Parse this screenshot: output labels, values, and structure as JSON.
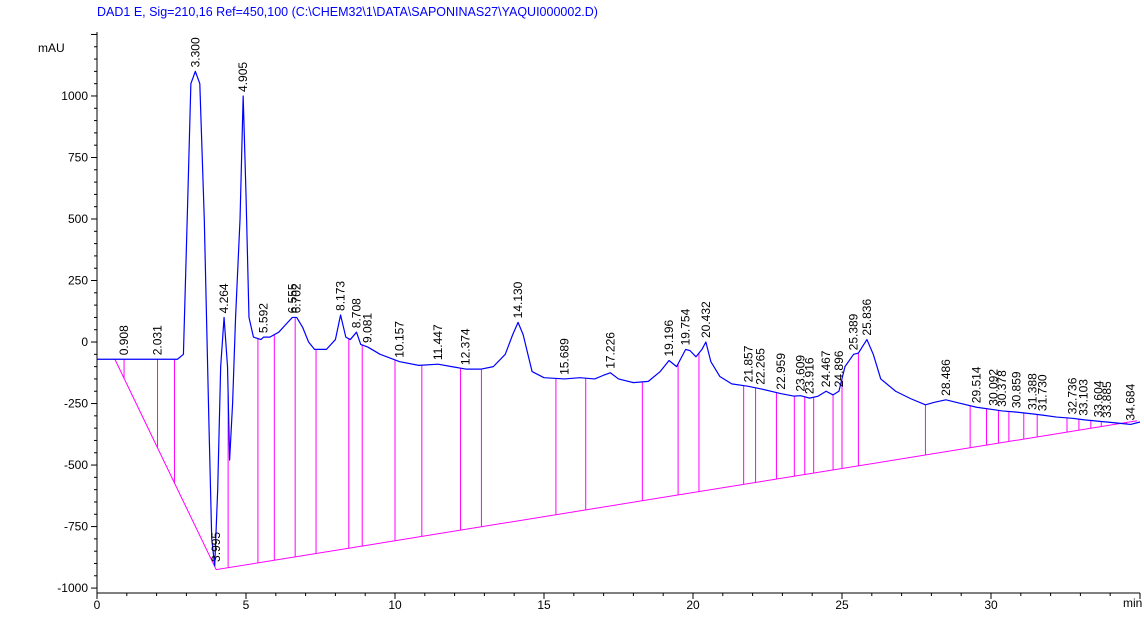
{
  "chart_data": {
    "type": "line",
    "title": "DAD1 E, Sig=210,16 Ref=450,100 (C:\\CHEM32\\1\\DATA\\SAPONINAS27\\YAQUI000002.D)",
    "ylabel": "mAU",
    "xlabel": "min",
    "xlim": [
      0,
      35
    ],
    "ylim": [
      -1020,
      1260
    ],
    "x_ticks": [
      0,
      5,
      10,
      15,
      20,
      25,
      30
    ],
    "y_ticks": [
      -1000,
      -750,
      -500,
      -250,
      0,
      250,
      500,
      750,
      1000
    ],
    "colors": {
      "signal": "#0000ff",
      "baseline": "#ff00ff",
      "title": "#0000ff",
      "axis": "#000000"
    },
    "signal": [
      [
        0,
        -70
      ],
      [
        2.7,
        -70
      ],
      [
        2.9,
        -50
      ],
      [
        3.05,
        600
      ],
      [
        3.15,
        1050
      ],
      [
        3.3,
        1100
      ],
      [
        3.45,
        1050
      ],
      [
        3.6,
        500
      ],
      [
        3.75,
        -300
      ],
      [
        3.85,
        -800
      ],
      [
        3.95,
        -910
      ],
      [
        4.05,
        -600
      ],
      [
        4.15,
        -100
      ],
      [
        4.264,
        100
      ],
      [
        4.38,
        -100
      ],
      [
        4.45,
        -480
      ],
      [
        4.55,
        -250
      ],
      [
        4.65,
        100
      ],
      [
        4.8,
        500
      ],
      [
        4.905,
        1000
      ],
      [
        5.0,
        600
      ],
      [
        5.1,
        100
      ],
      [
        5.25,
        20
      ],
      [
        5.5,
        10
      ],
      [
        5.592,
        20
      ],
      [
        5.8,
        20
      ],
      [
        6.1,
        40
      ],
      [
        6.4,
        80
      ],
      [
        6.555,
        100
      ],
      [
        6.702,
        100
      ],
      [
        6.9,
        60
      ],
      [
        7.1,
        0
      ],
      [
        7.3,
        -30
      ],
      [
        7.7,
        -30
      ],
      [
        8.0,
        10
      ],
      [
        8.173,
        110
      ],
      [
        8.35,
        20
      ],
      [
        8.5,
        10
      ],
      [
        8.708,
        40
      ],
      [
        8.85,
        -10
      ],
      [
        9.081,
        -20
      ],
      [
        9.5,
        -50
      ],
      [
        10.157,
        -80
      ],
      [
        10.8,
        -95
      ],
      [
        11.447,
        -90
      ],
      [
        11.9,
        -100
      ],
      [
        12.374,
        -110
      ],
      [
        12.9,
        -110
      ],
      [
        13.3,
        -100
      ],
      [
        13.7,
        -50
      ],
      [
        13.95,
        30
      ],
      [
        14.13,
        80
      ],
      [
        14.3,
        30
      ],
      [
        14.6,
        -120
      ],
      [
        15.0,
        -145
      ],
      [
        15.689,
        -150
      ],
      [
        16.2,
        -145
      ],
      [
        16.7,
        -150
      ],
      [
        17.0,
        -135
      ],
      [
        17.226,
        -125
      ],
      [
        17.5,
        -150
      ],
      [
        18.0,
        -165
      ],
      [
        18.5,
        -160
      ],
      [
        18.9,
        -120
      ],
      [
        19.196,
        -75
      ],
      [
        19.45,
        -100
      ],
      [
        19.754,
        -30
      ],
      [
        19.9,
        -35
      ],
      [
        20.1,
        -60
      ],
      [
        20.3,
        -30
      ],
      [
        20.432,
        0
      ],
      [
        20.6,
        -80
      ],
      [
        20.9,
        -140
      ],
      [
        21.3,
        -170
      ],
      [
        21.857,
        -180
      ],
      [
        22.265,
        -190
      ],
      [
        22.959,
        -210
      ],
      [
        23.4,
        -220
      ],
      [
        23.609,
        -218
      ],
      [
        23.916,
        -228
      ],
      [
        24.2,
        -220
      ],
      [
        24.467,
        -200
      ],
      [
        24.7,
        -215
      ],
      [
        24.896,
        -200
      ],
      [
        25.1,
        -100
      ],
      [
        25.389,
        -50
      ],
      [
        25.55,
        -45
      ],
      [
        25.836,
        10
      ],
      [
        26.05,
        -50
      ],
      [
        26.3,
        -150
      ],
      [
        26.8,
        -200
      ],
      [
        27.3,
        -230
      ],
      [
        27.8,
        -255
      ],
      [
        28.1,
        -245
      ],
      [
        28.486,
        -235
      ],
      [
        29.0,
        -250
      ],
      [
        29.514,
        -265
      ],
      [
        30.092,
        -275
      ],
      [
        30.378,
        -280
      ],
      [
        30.859,
        -285
      ],
      [
        31.388,
        -292
      ],
      [
        31.73,
        -297
      ],
      [
        32.2,
        -305
      ],
      [
        32.736,
        -310
      ],
      [
        33.103,
        -316
      ],
      [
        33.604,
        -322
      ],
      [
        33.885,
        -325
      ],
      [
        34.3,
        -330
      ],
      [
        34.684,
        -335
      ],
      [
        35.0,
        -325
      ]
    ],
    "baseline": [
      [
        0.6,
        -70
      ],
      [
        4.0,
        -925
      ],
      [
        34.9,
        -320
      ]
    ],
    "drop_lines": [
      0.908,
      2.031,
      2.6,
      4.4,
      5.4,
      5.95,
      6.65,
      7.35,
      8.45,
      8.9,
      10.0,
      10.9,
      12.2,
      12.9,
      15.4,
      16.4,
      18.3,
      19.5,
      20.2,
      21.7,
      22.1,
      22.8,
      23.4,
      23.75,
      24.05,
      24.7,
      25.0,
      25.55,
      27.8,
      29.3,
      29.85,
      30.25,
      30.6,
      31.1,
      31.55,
      32.55,
      32.95,
      33.35,
      33.7,
      34.55
    ],
    "peaks": [
      {
        "x": 0.908,
        "y": -70,
        "label": "0.908"
      },
      {
        "x": 2.031,
        "y": -70,
        "label": "2.031"
      },
      {
        "x": 3.3,
        "y": 1100,
        "label": "3.300"
      },
      {
        "x": 3.995,
        "y": -910,
        "label": "3.995"
      },
      {
        "x": 4.264,
        "y": 100,
        "label": "4.264"
      },
      {
        "x": 4.905,
        "y": 1000,
        "label": "4.905"
      },
      {
        "x": 5.592,
        "y": 20,
        "label": "5.592"
      },
      {
        "x": 6.555,
        "y": 100,
        "label": "6.555"
      },
      {
        "x": 6.702,
        "y": 100,
        "label": "6.702"
      },
      {
        "x": 8.173,
        "y": 110,
        "label": "8.173"
      },
      {
        "x": 8.708,
        "y": 40,
        "label": "8.708"
      },
      {
        "x": 9.081,
        "y": -20,
        "label": "9.081"
      },
      {
        "x": 10.157,
        "y": -80,
        "label": "10.157"
      },
      {
        "x": 11.447,
        "y": -90,
        "label": "11.447"
      },
      {
        "x": 12.374,
        "y": -110,
        "label": "12.374"
      },
      {
        "x": 14.13,
        "y": 80,
        "label": "14.130"
      },
      {
        "x": 15.689,
        "y": -150,
        "label": "15.689"
      },
      {
        "x": 17.226,
        "y": -125,
        "label": "17.226"
      },
      {
        "x": 19.196,
        "y": -75,
        "label": "19.196"
      },
      {
        "x": 19.754,
        "y": -30,
        "label": "19.754"
      },
      {
        "x": 20.432,
        "y": 0,
        "label": "20.432"
      },
      {
        "x": 21.857,
        "y": -180,
        "label": "21.857"
      },
      {
        "x": 22.265,
        "y": -190,
        "label": "22.265"
      },
      {
        "x": 22.959,
        "y": -210,
        "label": "22.959"
      },
      {
        "x": 23.609,
        "y": -218,
        "label": "23.609"
      },
      {
        "x": 23.916,
        "y": -228,
        "label": "23.916"
      },
      {
        "x": 24.467,
        "y": -200,
        "label": "24.467"
      },
      {
        "x": 24.896,
        "y": -200,
        "label": "24.896"
      },
      {
        "x": 25.389,
        "y": -50,
        "label": "25.389"
      },
      {
        "x": 25.836,
        "y": 10,
        "label": "25.836"
      },
      {
        "x": 28.486,
        "y": -235,
        "label": "28.486"
      },
      {
        "x": 29.514,
        "y": -265,
        "label": "29.514"
      },
      {
        "x": 30.092,
        "y": -275,
        "label": "30.092"
      },
      {
        "x": 30.378,
        "y": -280,
        "label": "30.378"
      },
      {
        "x": 30.859,
        "y": -285,
        "label": "30.859"
      },
      {
        "x": 31.388,
        "y": -292,
        "label": "31.388"
      },
      {
        "x": 31.73,
        "y": -297,
        "label": "31.730"
      },
      {
        "x": 32.736,
        "y": -310,
        "label": "32.736"
      },
      {
        "x": 33.103,
        "y": -316,
        "label": "33.103"
      },
      {
        "x": 33.604,
        "y": -322,
        "label": "33.604"
      },
      {
        "x": 33.885,
        "y": -325,
        "label": "33.885"
      },
      {
        "x": 34.684,
        "y": -335,
        "label": "34.684"
      }
    ]
  }
}
